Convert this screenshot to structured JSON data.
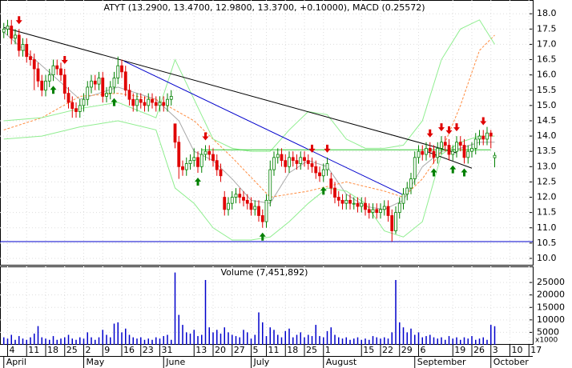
{
  "chart_data": {
    "type": "candlestick",
    "title": "ATYT (13.2900, 13.4700, 12.9800, 13.3700, +0.10000), MACD (0.25572)",
    "volume_title": "Volume (7,451,892)",
    "volume_unit": "x1000",
    "xlim": [
      -1,
      139
    ],
    "xticks": [
      {
        "value": 1,
        "label": "4"
      },
      {
        "value": 6,
        "label": "11"
      },
      {
        "value": 11,
        "label": "18"
      },
      {
        "value": 16,
        "label": "25"
      },
      {
        "value": 21,
        "label": "2"
      },
      {
        "value": 26,
        "label": "9"
      },
      {
        "value": 31,
        "label": "16"
      },
      {
        "value": 36,
        "label": "23"
      },
      {
        "value": 41,
        "label": "31"
      },
      {
        "value": 50,
        "label": "13"
      },
      {
        "value": 55,
        "label": "20"
      },
      {
        "value": 60,
        "label": "27"
      },
      {
        "value": 65,
        "label": "5"
      },
      {
        "value": 69,
        "label": "11"
      },
      {
        "value": 74,
        "label": "18"
      },
      {
        "value": 79,
        "label": "25"
      },
      {
        "value": 84,
        "label": "1"
      },
      {
        "value": 94,
        "label": "15"
      },
      {
        "value": 99,
        "label": "22"
      },
      {
        "value": 104,
        "label": "29"
      },
      {
        "value": 109,
        "label": "6"
      },
      {
        "value": 118,
        "label": "19"
      },
      {
        "value": 123,
        "label": "26"
      },
      {
        "value": 128,
        "label": "3"
      },
      {
        "value": 133,
        "label": "10"
      },
      {
        "value": 138,
        "label": "17"
      }
    ],
    "month_ticks": [
      {
        "value": 0,
        "label": "April"
      },
      {
        "value": 21,
        "label": "May"
      },
      {
        "value": 42,
        "label": "June"
      },
      {
        "value": 65,
        "label": "July"
      },
      {
        "value": 84,
        "label": "August"
      },
      {
        "value": 108,
        "label": "September"
      },
      {
        "value": 128,
        "label": "October"
      }
    ],
    "ylim": [
      9.79,
      18.45
    ],
    "yticks": [
      {
        "value": 10,
        "label": "10.0"
      },
      {
        "value": 10.5,
        "label": "10.5"
      },
      {
        "value": 11,
        "label": "11.0"
      },
      {
        "value": 11.5,
        "label": "11.5"
      },
      {
        "value": 12,
        "label": "12.0"
      },
      {
        "value": 12.5,
        "label": "12.5"
      },
      {
        "value": 13,
        "label": "13.0"
      },
      {
        "value": 13.5,
        "label": "13.5"
      },
      {
        "value": 14,
        "label": "14.0"
      },
      {
        "value": 14.5,
        "label": "14.5"
      },
      {
        "value": 15,
        "label": "15.0"
      },
      {
        "value": 15.5,
        "label": "15.5"
      },
      {
        "value": 16,
        "label": "16.0"
      },
      {
        "value": 16.5,
        "label": "16.5"
      },
      {
        "value": 17,
        "label": "17.0"
      },
      {
        "value": 17.5,
        "label": "17.5"
      },
      {
        "value": 18,
        "label": "18.0"
      }
    ],
    "volume_ylim": [
      0,
      31450
    ],
    "volume_yticks": [
      5000,
      10000,
      15000,
      20000,
      25000
    ],
    "grid": true,
    "up_color": "#008000",
    "down_color": "#e00000",
    "volume_color": "#0000cc",
    "ohlc": [
      [
        17.4,
        17.7,
        17.2,
        17.5
      ],
      [
        17.5,
        17.8,
        17.3,
        17.6
      ],
      [
        17.6,
        17.8,
        17.0,
        17.2
      ],
      [
        17.2,
        17.5,
        17.0,
        17.3
      ],
      [
        17.3,
        17.5,
        16.6,
        16.8
      ],
      [
        16.8,
        17.2,
        16.6,
        17.0
      ],
      [
        17.0,
        17.2,
        16.4,
        16.6
      ],
      [
        16.6,
        16.8,
        16.3,
        16.5
      ],
      [
        16.5,
        16.7,
        15.5,
        16.2
      ],
      [
        16.2,
        16.4,
        15.6,
        15.8
      ],
      [
        15.8,
        16.0,
        15.3,
        15.5
      ],
      [
        15.5,
        16.0,
        15.3,
        15.8
      ],
      [
        15.8,
        16.2,
        15.6,
        16.0
      ],
      [
        16.0,
        16.5,
        15.8,
        16.3
      ],
      [
        16.3,
        16.5,
        16.0,
        16.2
      ],
      [
        16.2,
        16.4,
        15.8,
        16.0
      ],
      [
        16.0,
        16.2,
        15.2,
        15.4
      ],
      [
        15.4,
        15.6,
        14.9,
        15.1
      ],
      [
        15.1,
        15.3,
        14.6,
        14.9
      ],
      [
        14.9,
        15.1,
        14.6,
        14.8
      ],
      [
        14.8,
        15.2,
        14.6,
        15.0
      ],
      [
        15.0,
        15.4,
        14.8,
        15.2
      ],
      [
        15.2,
        15.8,
        15.0,
        15.6
      ],
      [
        15.6,
        16.0,
        15.4,
        15.8
      ],
      [
        15.8,
        16.0,
        15.5,
        15.7
      ],
      [
        15.7,
        16.1,
        15.5,
        15.9
      ],
      [
        15.9,
        16.1,
        15.1,
        15.3
      ],
      [
        15.3,
        15.6,
        15.1,
        15.4
      ],
      [
        15.4,
        15.8,
        15.2,
        15.6
      ],
      [
        15.6,
        16.1,
        15.4,
        15.9
      ],
      [
        15.9,
        16.6,
        15.7,
        16.3
      ],
      [
        16.3,
        16.5,
        15.9,
        16.1
      ],
      [
        16.1,
        16.3,
        15.3,
        15.5
      ],
      [
        15.5,
        15.7,
        15.0,
        15.2
      ],
      [
        15.2,
        15.4,
        14.8,
        15.0
      ],
      [
        15.0,
        15.4,
        14.8,
        15.2
      ],
      [
        15.2,
        15.4,
        14.9,
        15.1
      ],
      [
        15.1,
        15.3,
        14.8,
        15.0
      ],
      [
        15.0,
        15.4,
        14.8,
        15.2
      ],
      [
        15.2,
        15.4,
        14.9,
        15.1
      ],
      [
        15.1,
        15.3,
        14.8,
        15.0
      ],
      [
        15.0,
        15.3,
        14.8,
        15.1
      ],
      [
        15.1,
        15.3,
        14.8,
        15.0
      ],
      [
        15.0,
        15.4,
        14.8,
        15.2
      ],
      [
        15.2,
        15.5,
        15.0,
        15.3
      ],
      [
        14.4,
        14.4,
        13.6,
        13.8
      ],
      [
        13.8,
        14.0,
        12.6,
        13.0
      ],
      [
        13.0,
        13.2,
        12.7,
        12.9
      ],
      [
        12.9,
        13.3,
        12.7,
        13.1
      ],
      [
        13.1,
        13.4,
        12.9,
        13.2
      ],
      [
        13.2,
        13.6,
        13.0,
        13.3
      ],
      [
        13.3,
        13.5,
        12.8,
        13.0
      ],
      [
        13.0,
        13.6,
        12.8,
        13.4
      ],
      [
        13.4,
        13.7,
        13.2,
        13.5
      ],
      [
        13.5,
        13.7,
        13.2,
        13.4
      ],
      [
        13.4,
        13.6,
        13.0,
        13.2
      ],
      [
        13.2,
        13.4,
        12.7,
        12.9
      ],
      [
        12.9,
        13.1,
        12.5,
        12.7
      ],
      [
        12.0,
        12.2,
        11.4,
        11.6
      ],
      [
        11.6,
        12.0,
        11.4,
        11.8
      ],
      [
        11.8,
        12.2,
        11.6,
        12.0
      ],
      [
        12.0,
        12.3,
        11.8,
        12.1
      ],
      [
        12.1,
        12.3,
        11.8,
        12.0
      ],
      [
        12.0,
        12.2,
        11.7,
        11.9
      ],
      [
        11.9,
        12.1,
        11.6,
        11.8
      ],
      [
        11.8,
        12.0,
        11.4,
        11.6
      ],
      [
        11.6,
        11.9,
        11.4,
        11.7
      ],
      [
        11.7,
        11.9,
        11.2,
        11.4
      ],
      [
        11.4,
        11.6,
        11.0,
        11.2
      ],
      [
        11.2,
        12.1,
        11.0,
        11.9
      ],
      [
        11.9,
        13.2,
        11.7,
        12.9
      ],
      [
        12.9,
        13.5,
        12.7,
        13.3
      ],
      [
        13.3,
        13.6,
        13.1,
        13.4
      ],
      [
        13.4,
        13.6,
        13.0,
        13.2
      ],
      [
        13.2,
        13.4,
        12.8,
        13.0
      ],
      [
        13.0,
        13.5,
        12.8,
        13.3
      ],
      [
        13.3,
        13.5,
        13.0,
        13.2
      ],
      [
        13.2,
        13.4,
        12.9,
        13.1
      ],
      [
        13.1,
        13.5,
        12.9,
        13.3
      ],
      [
        13.3,
        13.5,
        13.0,
        13.2
      ],
      [
        13.2,
        13.4,
        12.9,
        13.1
      ],
      [
        13.1,
        13.3,
        12.8,
        13.0
      ],
      [
        13.0,
        13.2,
        12.6,
        12.8
      ],
      [
        12.8,
        13.0,
        12.5,
        12.7
      ],
      [
        12.7,
        13.1,
        12.5,
        12.9
      ],
      [
        12.9,
        13.3,
        12.7,
        13.1
      ],
      [
        12.6,
        12.8,
        12.1,
        12.3
      ],
      [
        12.3,
        12.5,
        11.8,
        12.0
      ],
      [
        12.0,
        12.2,
        11.7,
        11.9
      ],
      [
        11.9,
        12.1,
        11.6,
        11.8
      ],
      [
        11.8,
        12.1,
        11.6,
        11.9
      ],
      [
        11.9,
        12.1,
        11.6,
        11.8
      ],
      [
        11.8,
        12.0,
        11.6,
        11.8
      ],
      [
        11.8,
        12.0,
        11.5,
        11.7
      ],
      [
        11.7,
        12.0,
        11.5,
        11.8
      ],
      [
        11.8,
        12.0,
        11.4,
        11.6
      ],
      [
        11.6,
        11.8,
        11.3,
        11.5
      ],
      [
        11.5,
        11.8,
        11.3,
        11.6
      ],
      [
        11.6,
        11.8,
        11.3,
        11.5
      ],
      [
        11.5,
        11.8,
        11.3,
        11.6
      ],
      [
        11.6,
        11.9,
        11.4,
        11.7
      ],
      [
        11.7,
        11.9,
        11.2,
        11.4
      ],
      [
        11.4,
        11.6,
        10.55,
        10.9
      ],
      [
        10.9,
        11.7,
        10.8,
        11.5
      ],
      [
        11.5,
        12.0,
        11.3,
        11.8
      ],
      [
        11.8,
        12.3,
        11.6,
        12.1
      ],
      [
        12.1,
        12.5,
        11.9,
        12.3
      ],
      [
        12.3,
        12.8,
        12.1,
        12.6
      ],
      [
        12.6,
        13.5,
        12.4,
        13.3
      ],
      [
        13.3,
        13.7,
        13.1,
        13.5
      ],
      [
        13.5,
        13.7,
        13.2,
        13.4
      ],
      [
        13.4,
        13.8,
        13.2,
        13.6
      ],
      [
        13.6,
        13.8,
        13.3,
        13.5
      ],
      [
        13.5,
        13.7,
        13.1,
        13.3
      ],
      [
        13.3,
        13.8,
        13.1,
        13.6
      ],
      [
        13.6,
        14.0,
        13.4,
        13.8
      ],
      [
        13.8,
        14.0,
        13.5,
        13.7
      ],
      [
        13.7,
        13.9,
        13.2,
        13.4
      ],
      [
        13.4,
        13.7,
        13.2,
        13.5
      ],
      [
        13.5,
        14.0,
        13.3,
        13.8
      ],
      [
        13.8,
        14.0,
        13.5,
        13.7
      ],
      [
        13.7,
        13.9,
        13.1,
        13.3
      ],
      [
        13.3,
        13.7,
        13.1,
        13.5
      ],
      [
        13.5,
        13.8,
        13.3,
        13.6
      ],
      [
        13.6,
        14.1,
        13.4,
        13.9
      ],
      [
        13.9,
        14.2,
        13.7,
        14.0
      ],
      [
        14.0,
        14.2,
        13.7,
        13.9
      ],
      [
        13.9,
        14.3,
        13.7,
        14.1
      ],
      [
        14.1,
        14.2,
        13.6,
        14.0
      ],
      [
        13.29,
        13.47,
        12.98,
        13.37
      ]
    ],
    "volume": [
      3000,
      2500,
      4000,
      2000,
      3500,
      2500,
      2000,
      3000,
      4500,
      7500,
      3000,
      2500,
      2000,
      3500,
      2000,
      2500,
      3000,
      4000,
      2500,
      2000,
      3000,
      2500,
      5000,
      3000,
      2000,
      3000,
      6000,
      4000,
      3000,
      8500,
      9000,
      5000,
      6500,
      4000,
      3000,
      2500,
      3000,
      2000,
      2500,
      2000,
      3000,
      2500,
      3500,
      4000,
      2000,
      29000,
      12000,
      8000,
      5000,
      4500,
      6000,
      3500,
      4000,
      26000,
      7000,
      5000,
      6000,
      4500,
      7000,
      5000,
      4000,
      3500,
      3000,
      6000,
      5000,
      2500,
      4000,
      13000,
      9000,
      3500,
      7000,
      6000,
      4000,
      3000,
      5500,
      6500,
      3000,
      4000,
      5000,
      3000,
      4000,
      3500,
      8000,
      3500,
      3000,
      5500,
      7000,
      4000,
      3000,
      2500,
      3000,
      2000,
      2500,
      3000,
      2000,
      2500,
      2000,
      3500,
      3000,
      2500,
      3000,
      2500,
      5000,
      26000,
      9000,
      7000,
      5000,
      6500,
      4000,
      5000,
      3000,
      3500,
      4000,
      3000,
      2500,
      3000,
      2000,
      3500,
      2500,
      3000,
      2000,
      3000,
      2500,
      3500,
      2000,
      2500,
      3000,
      2000,
      8000,
      7452
    ],
    "indicators": [
      {
        "color": "#aaaaaa",
        "dashed": false,
        "x": [
          0,
          10,
          20,
          30,
          40,
          46,
          50,
          55,
          60,
          65,
          70,
          75,
          80,
          85,
          90,
          95,
          100,
          105,
          110,
          115,
          120,
          125,
          129
        ],
        "values": [
          17.4,
          16.3,
          15.2,
          15.6,
          15.2,
          14.5,
          13.5,
          13.2,
          12.6,
          11.9,
          11.8,
          12.8,
          13.2,
          13.0,
          12.1,
          11.7,
          11.6,
          11.9,
          13.0,
          13.5,
          13.6,
          13.8,
          13.8
        ]
      },
      {
        "color": "#ff8c40",
        "dashed": true,
        "x": [
          0,
          10,
          20,
          30,
          40,
          50,
          60,
          70,
          80,
          90,
          100,
          105,
          110,
          115,
          120,
          125,
          129
        ],
        "values": [
          14.2,
          14.6,
          15.3,
          15.4,
          15.2,
          14.5,
          13.3,
          12.0,
          12.2,
          12.5,
          12.2,
          12.0,
          12.6,
          13.5,
          15.0,
          16.8,
          17.3
        ]
      },
      {
        "color": "#90ee90",
        "dashed": false,
        "x": [
          0,
          10,
          20,
          30,
          40,
          45,
          50,
          55,
          60,
          65,
          70,
          75,
          80,
          85,
          90,
          95,
          100,
          105,
          110,
          115,
          120,
          125,
          129
        ],
        "values": [
          14.5,
          14.6,
          14.9,
          15.1,
          14.6,
          16.5,
          15.2,
          13.9,
          13.6,
          13.5,
          13.5,
          14.2,
          14.8,
          14.7,
          13.9,
          13.6,
          13.6,
          13.7,
          14.5,
          16.5,
          17.5,
          17.8,
          17.0
        ]
      },
      {
        "color": "#90ee90",
        "dashed": false,
        "x": [
          0,
          10,
          20,
          30,
          40,
          45,
          50,
          55,
          60,
          65,
          70,
          75,
          80,
          85,
          90,
          95,
          100,
          105,
          110,
          115,
          120,
          125,
          129
        ],
        "values": [
          13.9,
          14.0,
          14.3,
          14.5,
          14.2,
          12.3,
          11.8,
          11.0,
          10.6,
          10.6,
          10.7,
          11.2,
          11.8,
          12.3,
          12.2,
          11.8,
          10.9,
          10.7,
          11.2,
          13.4,
          13.8,
          14.0,
          14.0
        ]
      }
    ],
    "trendlines": [
      {
        "color": "#000000",
        "x": [
          0,
          119
        ],
        "values": [
          17.55,
          13.45
        ]
      },
      {
        "color": "#0000cc",
        "x": [
          31.6,
          104.6
        ],
        "values": [
          16.45,
          12.1
        ]
      },
      {
        "color": "#000000",
        "x": [
          111,
          123
        ],
        "values": [
          13.5,
          12.95
        ]
      },
      {
        "color": "#33cc33",
        "x": [
          52,
          128
        ],
        "values": [
          13.55,
          13.55
        ]
      },
      {
        "color": "#0000cc",
        "x": [
          -1,
          139
        ],
        "values": [
          10.55,
          10.55
        ]
      }
    ],
    "buy_signals": [
      13,
      29,
      51,
      68,
      84,
      113,
      118,
      121
    ],
    "sell_signals": [
      4,
      16,
      53,
      81,
      85,
      112,
      115,
      117,
      119,
      126
    ]
  }
}
